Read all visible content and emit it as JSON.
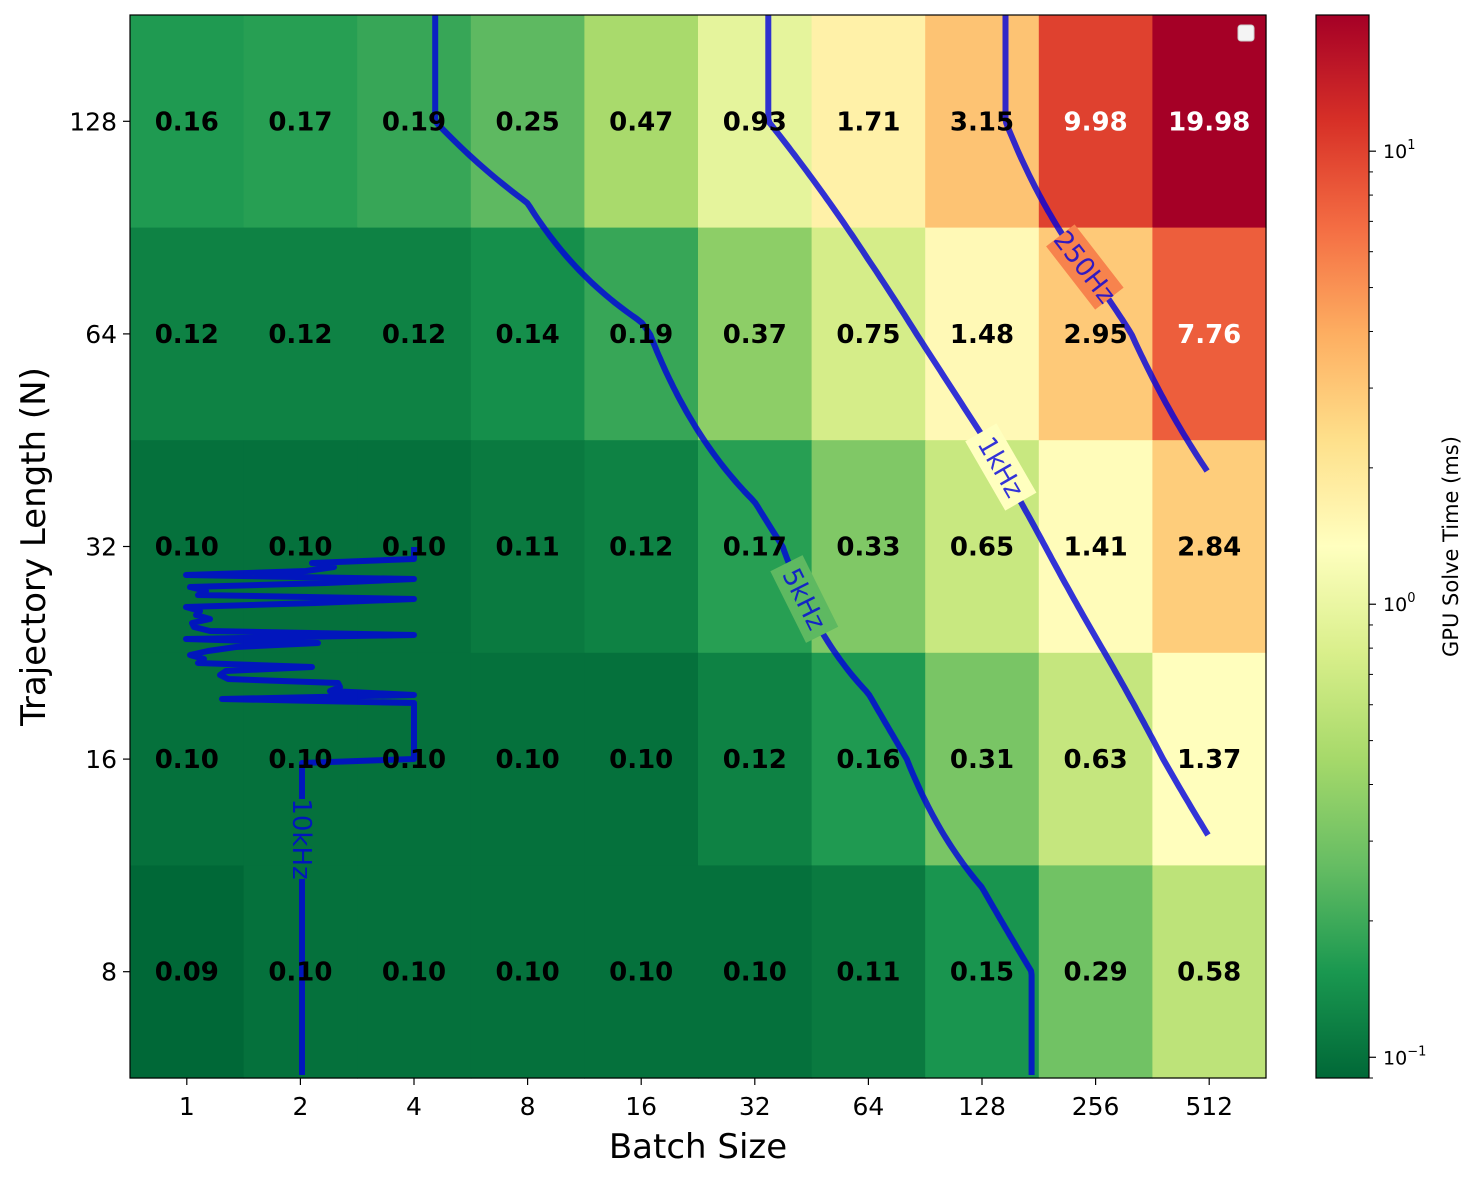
{
  "chart_data": {
    "type": "heatmap",
    "title": "",
    "xlabel": "Batch Size",
    "ylabel": "Trajectory Length (N)",
    "x_categories": [
      "1",
      "2",
      "4",
      "8",
      "16",
      "32",
      "64",
      "128",
      "256",
      "512"
    ],
    "y_categories": [
      "128",
      "64",
      "32",
      "16",
      "8"
    ],
    "values": [
      [
        0.16,
        0.17,
        0.19,
        0.25,
        0.47,
        0.93,
        1.71,
        3.15,
        9.98,
        19.98
      ],
      [
        0.12,
        0.12,
        0.12,
        0.14,
        0.19,
        0.37,
        0.75,
        1.48,
        2.95,
        7.76
      ],
      [
        0.1,
        0.1,
        0.1,
        0.11,
        0.12,
        0.17,
        0.33,
        0.65,
        1.41,
        2.84
      ],
      [
        0.1,
        0.1,
        0.1,
        0.1,
        0.1,
        0.12,
        0.16,
        0.31,
        0.63,
        1.37
      ],
      [
        0.09,
        0.1,
        0.1,
        0.1,
        0.1,
        0.1,
        0.11,
        0.15,
        0.29,
        0.58
      ]
    ],
    "colorbar": {
      "label": "GPU Solve Time (ms)",
      "scale": "log",
      "range": [
        0.09,
        19.98
      ],
      "colormap": "RdYlGn_r",
      "ticks": [
        {
          "value": 0.1,
          "base": "10",
          "exp": "−1"
        },
        {
          "value": 1,
          "base": "10",
          "exp": "0"
        },
        {
          "value": 10,
          "base": "10",
          "exp": "1"
        }
      ]
    },
    "contours": [
      {
        "label": "10kHz",
        "level_ms": 0.1
      },
      {
        "label": "5kHz",
        "level_ms": 0.2
      },
      {
        "label": "1kHz",
        "level_ms": 1.0
      },
      {
        "label": "250Hz",
        "level_ms": 4.0
      }
    ],
    "contour_color": "#0000dd",
    "legend": "top-right (empty)",
    "grid": false
  }
}
